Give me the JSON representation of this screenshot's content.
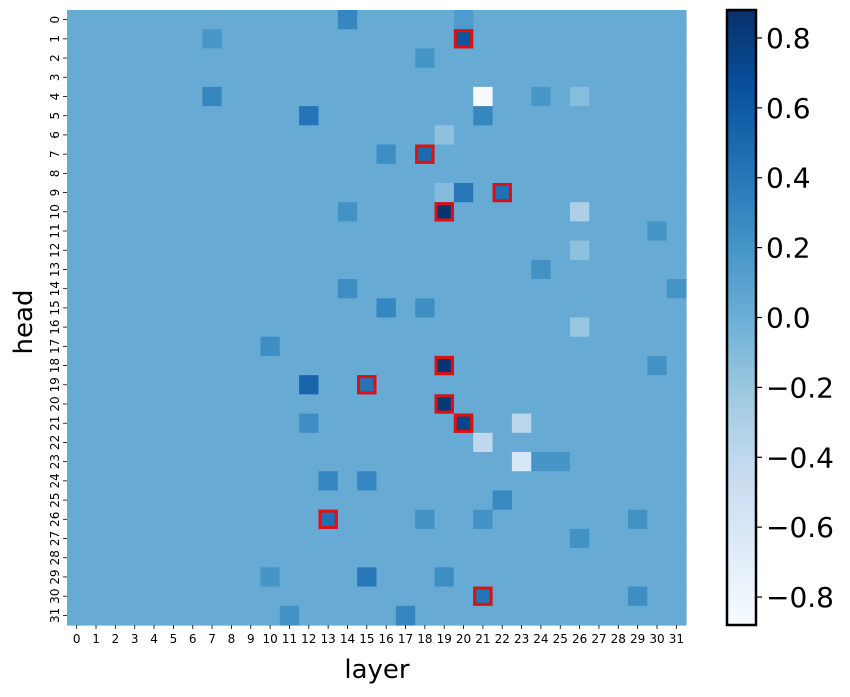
{
  "chart_data": {
    "type": "heatmap",
    "title": "",
    "xlabel": "layer",
    "ylabel": "head",
    "x_categories": [
      "0",
      "1",
      "2",
      "3",
      "4",
      "5",
      "6",
      "7",
      "8",
      "9",
      "10",
      "11",
      "12",
      "13",
      "14",
      "15",
      "16",
      "17",
      "18",
      "19",
      "20",
      "21",
      "22",
      "23",
      "24",
      "25",
      "26",
      "27",
      "28",
      "29",
      "30",
      "31"
    ],
    "y_categories": [
      "0",
      "1",
      "2",
      "3",
      "4",
      "5",
      "6",
      "7",
      "8",
      "9",
      "10",
      "11",
      "12",
      "13",
      "14",
      "15",
      "16",
      "17",
      "18",
      "19",
      "20",
      "21",
      "22",
      "23",
      "24",
      "25",
      "26",
      "27",
      "28",
      "29",
      "30",
      "31"
    ],
    "colorscale": "Blues",
    "vmin": -0.88,
    "vmax": 0.88,
    "colorbar_ticks": [
      0.8,
      0.6,
      0.4,
      0.2,
      0.0,
      -0.2,
      -0.4,
      -0.6,
      -0.8
    ],
    "colorbar_labels": [
      "0.8",
      "0.6",
      "0.4",
      "0.2",
      "0.0",
      "−0.2",
      "−0.4",
      "−0.6",
      "−0.8"
    ],
    "highlight_color": "#dd1111",
    "default_value": 0.02,
    "notable_cells": [
      {
        "head": 0,
        "layer": 14,
        "value": 0.3
      },
      {
        "head": 0,
        "layer": 20,
        "value": 0.15
      },
      {
        "head": 1,
        "layer": 7,
        "value": 0.18
      },
      {
        "head": 1,
        "layer": 20,
        "value": 0.62,
        "highlight": true
      },
      {
        "head": 2,
        "layer": 18,
        "value": 0.2
      },
      {
        "head": 4,
        "layer": 7,
        "value": 0.3
      },
      {
        "head": 4,
        "layer": 21,
        "value": -0.88
      },
      {
        "head": 4,
        "layer": 26,
        "value": -0.12
      },
      {
        "head": 4,
        "layer": 24,
        "value": 0.18
      },
      {
        "head": 5,
        "layer": 12,
        "value": 0.42
      },
      {
        "head": 5,
        "layer": 21,
        "value": 0.3
      },
      {
        "head": 6,
        "layer": 19,
        "value": -0.15
      },
      {
        "head": 7,
        "layer": 18,
        "value": 0.48,
        "highlight": true
      },
      {
        "head": 7,
        "layer": 16,
        "value": 0.25
      },
      {
        "head": 9,
        "layer": 20,
        "value": 0.4
      },
      {
        "head": 9,
        "layer": 19,
        "value": -0.1
      },
      {
        "head": 9,
        "layer": 22,
        "value": 0.45,
        "highlight": true
      },
      {
        "head": 10,
        "layer": 19,
        "value": 0.85,
        "highlight": true
      },
      {
        "head": 10,
        "layer": 26,
        "value": -0.3
      },
      {
        "head": 10,
        "layer": 14,
        "value": 0.22
      },
      {
        "head": 11,
        "layer": 30,
        "value": 0.2
      },
      {
        "head": 12,
        "layer": 26,
        "value": -0.15
      },
      {
        "head": 13,
        "layer": 24,
        "value": 0.22
      },
      {
        "head": 14,
        "layer": 14,
        "value": 0.25
      },
      {
        "head": 14,
        "layer": 31,
        "value": 0.2
      },
      {
        "head": 15,
        "layer": 16,
        "value": 0.3
      },
      {
        "head": 15,
        "layer": 18,
        "value": 0.25
      },
      {
        "head": 16,
        "layer": 26,
        "value": -0.2
      },
      {
        "head": 17,
        "layer": 10,
        "value": 0.25
      },
      {
        "head": 18,
        "layer": 19,
        "value": 0.85,
        "highlight": true
      },
      {
        "head": 18,
        "layer": 30,
        "value": 0.22
      },
      {
        "head": 19,
        "layer": 12,
        "value": 0.52
      },
      {
        "head": 19,
        "layer": 15,
        "value": 0.42,
        "highlight": true
      },
      {
        "head": 20,
        "layer": 19,
        "value": 0.82,
        "highlight": true
      },
      {
        "head": 21,
        "layer": 20,
        "value": 0.75,
        "highlight": true
      },
      {
        "head": 21,
        "layer": 12,
        "value": 0.25
      },
      {
        "head": 21,
        "layer": 23,
        "value": -0.38
      },
      {
        "head": 22,
        "layer": 21,
        "value": -0.4
      },
      {
        "head": 23,
        "layer": 23,
        "value": -0.6
      },
      {
        "head": 23,
        "layer": 24,
        "value": 0.2
      },
      {
        "head": 23,
        "layer": 25,
        "value": 0.2
      },
      {
        "head": 24,
        "layer": 13,
        "value": 0.3
      },
      {
        "head": 24,
        "layer": 15,
        "value": 0.3
      },
      {
        "head": 25,
        "layer": 22,
        "value": 0.28
      },
      {
        "head": 26,
        "layer": 13,
        "value": 0.45,
        "highlight": true
      },
      {
        "head": 26,
        "layer": 18,
        "value": 0.22
      },
      {
        "head": 26,
        "layer": 21,
        "value": 0.22
      },
      {
        "head": 26,
        "layer": 29,
        "value": 0.22
      },
      {
        "head": 27,
        "layer": 26,
        "value": 0.22
      },
      {
        "head": 29,
        "layer": 15,
        "value": 0.4
      },
      {
        "head": 29,
        "layer": 10,
        "value": 0.2
      },
      {
        "head": 29,
        "layer": 19,
        "value": 0.25
      },
      {
        "head": 30,
        "layer": 21,
        "value": 0.42,
        "highlight": true
      },
      {
        "head": 30,
        "layer": 29,
        "value": 0.25
      },
      {
        "head": 31,
        "layer": 17,
        "value": 0.3
      },
      {
        "head": 31,
        "layer": 11,
        "value": 0.22
      }
    ]
  }
}
